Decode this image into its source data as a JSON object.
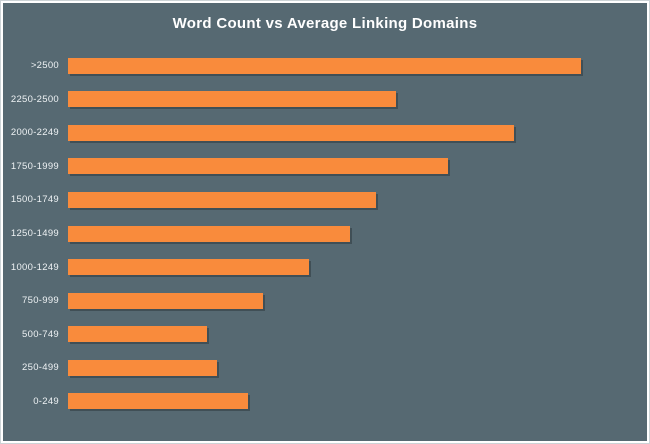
{
  "chart_data": {
    "type": "bar",
    "orientation": "horizontal",
    "title": "Word Count vs Average Linking Domains",
    "xlabel": "",
    "ylabel": "",
    "categories": [
      ">2500",
      "2250-2500",
      "2000-2249",
      "1750-1999",
      "1500-1749",
      "1250-1499",
      "1000-1249",
      "750-999",
      "500-749",
      "250-499",
      "0-249"
    ],
    "values": [
      100,
      64,
      87,
      74,
      60,
      55,
      47,
      38,
      27,
      29,
      35
    ],
    "value_scale": "relative, normalized to longest bar = 100 (no value axis or data labels shown in chart)",
    "xlim": [
      0,
      100
    ],
    "grid": false,
    "legend": false,
    "colors": {
      "bar": "#f98b3c",
      "background": "#566972",
      "title_text": "#ffffff",
      "label_text": "#eef2f4",
      "frame": "#ffffff"
    }
  }
}
